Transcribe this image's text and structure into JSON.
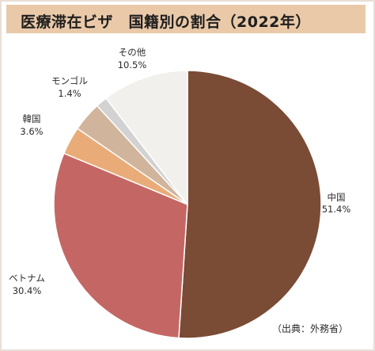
{
  "chart_data": {
    "type": "pie",
    "title": "医療滞在ビザ　国籍別の割合（2022年）",
    "slices": [
      {
        "label": "中国",
        "value": 51.4,
        "value_label": "51.4%",
        "color": "#7a4b35"
      },
      {
        "label": "ベトナム",
        "value": 30.4,
        "value_label": "30.4%",
        "color": "#c46764"
      },
      {
        "label": "",
        "value": 3.4,
        "value_label": "",
        "color": "#e9ac79"
      },
      {
        "label": "韓国",
        "value": 3.6,
        "value_label": "3.6%",
        "color": "#d1b49c"
      },
      {
        "label": "モンゴル",
        "value": 1.4,
        "value_label": "1.4%",
        "color": "#d3d2d2"
      },
      {
        "label": "その他",
        "value": 10.5,
        "value_label": "10.5%",
        "color": "#f1f0ec"
      }
    ],
    "start_angle_deg": 0,
    "direction": "clockwise",
    "legend": "none",
    "source": "（出典：外務省）"
  }
}
